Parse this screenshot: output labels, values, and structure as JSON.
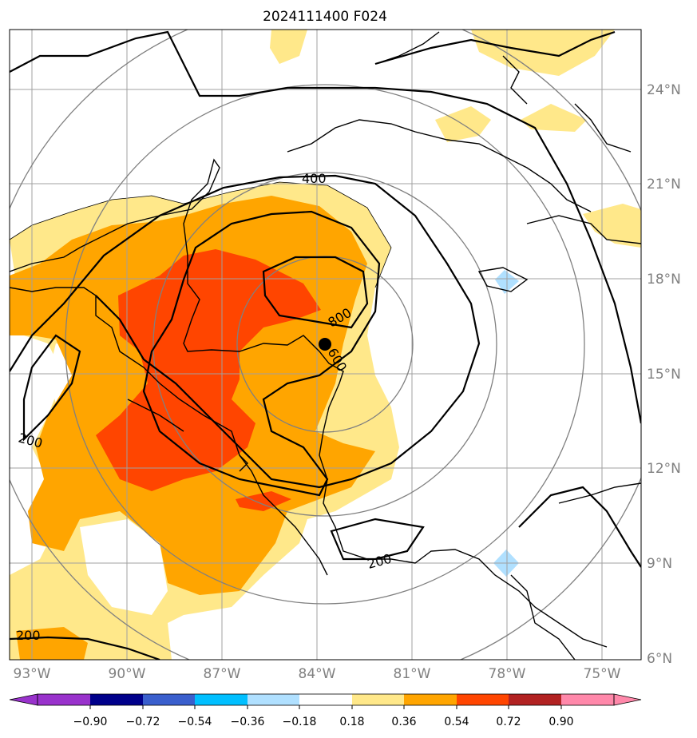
{
  "title": "2024111400 F024",
  "map": {
    "longitude_labels": [
      "93°W",
      "90°W",
      "87°W",
      "84°W",
      "81°W",
      "78°W",
      "75°W"
    ],
    "latitude_labels": [
      "24°N",
      "21°N",
      "18°N",
      "15°N",
      "12°N",
      "9°N",
      "6°N"
    ],
    "contour_labels": [
      "400",
      "800",
      "600",
      "200",
      "200",
      "200"
    ],
    "storm_center": {
      "lon": -83.7,
      "lat": 15.9
    },
    "colors": {
      "light_yellow": "#ffe88a",
      "orange": "#ffa500",
      "red_orange": "#ff4500",
      "light_blue": "#b0e0ff",
      "grid": "#a0a0a0",
      "range_ring": "#808080"
    }
  },
  "colorbar": {
    "tick_labels": [
      "−0.90",
      "−0.72",
      "−0.54",
      "−0.36",
      "−0.18",
      "0.18",
      "0.36",
      "0.54",
      "0.72",
      "0.90"
    ],
    "colors": [
      "#9932cc",
      "#00008b",
      "#3a5fcd",
      "#00bfff",
      "#b0e0ff",
      "#ffffff",
      "#ffe88a",
      "#ffa500",
      "#ff4500",
      "#b22222",
      "#ff88aa"
    ]
  }
}
